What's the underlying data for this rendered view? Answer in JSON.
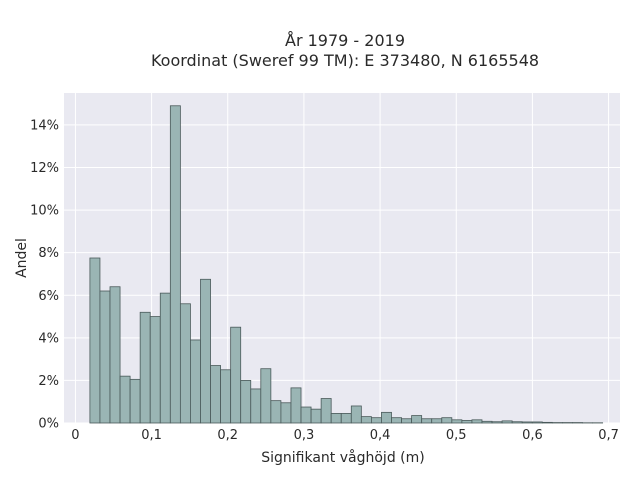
{
  "chart_data": {
    "type": "bar",
    "title_line1": "År 1979 - 2019",
    "title_line2": "Koordinat (Sweref 99 TM): E 373480, N 6165548",
    "xlabel": "Signifikant våghöjd (m)",
    "ylabel": "Andel",
    "xlim": [
      -0.015,
      0.715
    ],
    "ylim": [
      0,
      15.5
    ],
    "grid": true,
    "x_ticks": [
      {
        "value": 0.0,
        "label": "0"
      },
      {
        "value": 0.1,
        "label": "0,1"
      },
      {
        "value": 0.2,
        "label": "0,2"
      },
      {
        "value": 0.3,
        "label": "0,3"
      },
      {
        "value": 0.4,
        "label": "0,4"
      },
      {
        "value": 0.5,
        "label": "0,5"
      },
      {
        "value": 0.6,
        "label": "0,6"
      },
      {
        "value": 0.7,
        "label": "0,7"
      }
    ],
    "y_ticks": [
      {
        "value": 0,
        "label": "0%"
      },
      {
        "value": 2,
        "label": "2%"
      },
      {
        "value": 4,
        "label": "4%"
      },
      {
        "value": 6,
        "label": "6%"
      },
      {
        "value": 8,
        "label": "8%"
      },
      {
        "value": 10,
        "label": "10%"
      },
      {
        "value": 12,
        "label": "12%"
      },
      {
        "value": 14,
        "label": "14%"
      }
    ],
    "bin_start": 0.019,
    "bin_width": 0.0132,
    "values": [
      7.75,
      6.2,
      6.4,
      2.2,
      2.05,
      5.2,
      5.0,
      6.1,
      14.9,
      5.6,
      3.9,
      6.75,
      2.7,
      2.5,
      4.5,
      2.0,
      1.6,
      2.55,
      1.05,
      0.95,
      1.65,
      0.75,
      0.65,
      1.15,
      0.45,
      0.45,
      0.8,
      0.3,
      0.25,
      0.5,
      0.25,
      0.2,
      0.35,
      0.2,
      0.2,
      0.25,
      0.15,
      0.12,
      0.15,
      0.08,
      0.06,
      0.1,
      0.06,
      0.05,
      0.05,
      0.03,
      0.02,
      0.02,
      0.02,
      0.01,
      0.01
    ],
    "colors": {
      "bar_fill": "#9ab5b4",
      "bar_stroke": "#4a5a5a",
      "plot_bg": "#e9e9f1",
      "grid": "#ffffff",
      "text": "#2a2a2a"
    }
  }
}
